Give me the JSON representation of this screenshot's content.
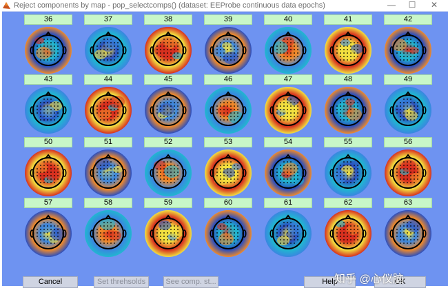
{
  "window": {
    "title": "Reject components by map - pop_selectcomps() (dataset: EEProbe continuous data epochs)",
    "controls": {
      "minimize": "—",
      "maximize": "☐",
      "close": "✕"
    }
  },
  "components": [
    "36",
    "37",
    "38",
    "39",
    "40",
    "41",
    "42",
    "43",
    "44",
    "45",
    "46",
    "47",
    "48",
    "49",
    "50",
    "51",
    "52",
    "53",
    "54",
    "55",
    "56",
    "57",
    "58",
    "59",
    "60",
    "61",
    "62",
    "63"
  ],
  "buttons": {
    "cancel": "Cancel",
    "set_thresholds": "Set threhsolds",
    "see_comp_stats": "See comp. st...",
    "help": "Help",
    "ok": "OK"
  },
  "watermark": "知乎 @心仪脑",
  "colors": {
    "background": "#6e93f1",
    "component_button": "#c8f7c8",
    "scalp_red": "#d7301f",
    "scalp_blue": "#2b4fbf",
    "scalp_cyan": "#20b7d0",
    "scalp_yellow": "#f2e040"
  }
}
